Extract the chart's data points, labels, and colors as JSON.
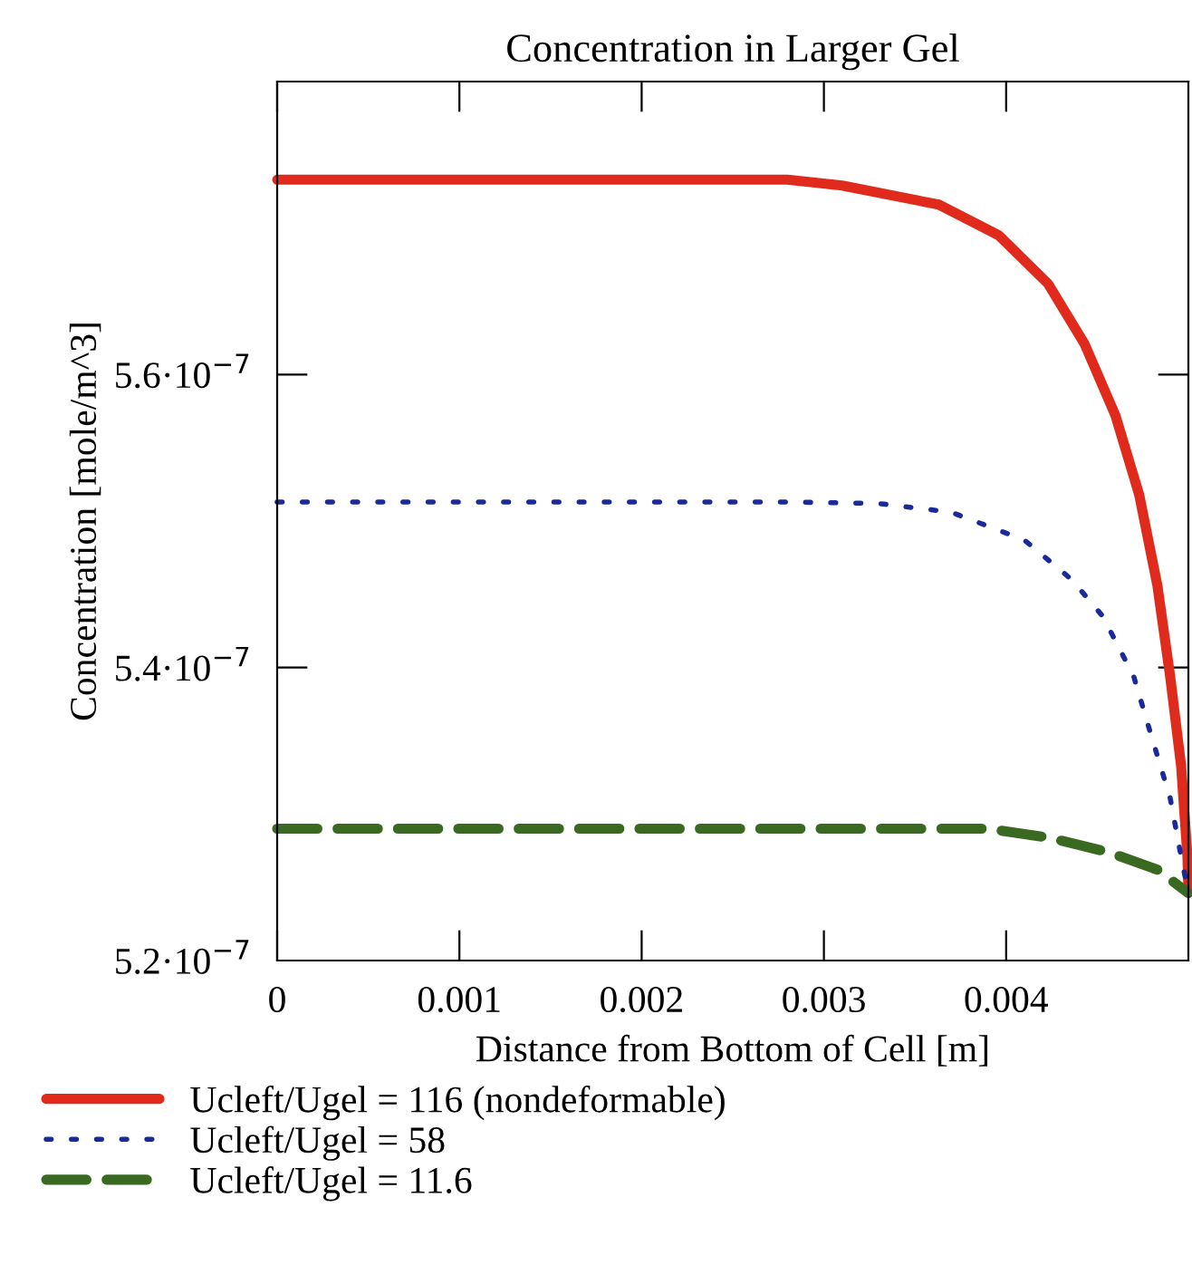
{
  "chart_data": {
    "type": "line",
    "title": "Concentration in Larger Gel",
    "xlabel": "Distance from Bottom of Cell [m]",
    "ylabel": "Concentration [mole/m^3]",
    "xlim": [
      0,
      0.005
    ],
    "ylim": [
      5.2e-07,
      5.8e-07
    ],
    "xticks": [
      0,
      0.001,
      0.002,
      0.003,
      0.004
    ],
    "yticks": [
      {
        "value": 5.2e-07,
        "label": "5.2·10$^{−7}$"
      },
      {
        "value": 5.4e-07,
        "label": "5.4·10$^{−7}$"
      },
      {
        "value": 5.6e-07,
        "label": "5.6·10$^{−7}$"
      }
    ],
    "grid": false,
    "legend": "bottom left",
    "marker": "none",
    "series": [
      {
        "name": "Ucleft/Ugel = 116 (nondeformable)",
        "color": "#e02a1c",
        "line_style": "solid",
        "x": [
          0,
          0.001,
          0.002,
          0.0028,
          0.0031,
          0.00363,
          0.00396,
          0.00423,
          0.00443,
          0.0046,
          0.00473,
          0.00483,
          0.0049,
          0.00496,
          0.004995,
          0.005
        ],
        "values": [
          5.733e-07,
          5.733e-07,
          5.733e-07,
          5.733e-07,
          5.729e-07,
          5.716e-07,
          5.695e-07,
          5.662e-07,
          5.621e-07,
          5.572e-07,
          5.518e-07,
          5.456e-07,
          5.394e-07,
          5.333e-07,
          5.271e-07,
          5.25e-07
        ]
      },
      {
        "name": "Ucleft/Ugel = 58",
        "color": "#1a2a9a",
        "line_style": "dotted",
        "x": [
          0,
          0.001,
          0.002,
          0.0028,
          0.0033,
          0.0037,
          0.0041,
          0.00436,
          0.00453,
          0.0047,
          0.0048,
          0.0049,
          0.00496,
          0.005
        ],
        "values": [
          5.513e-07,
          5.513e-07,
          5.513e-07,
          5.513e-07,
          5.512e-07,
          5.506e-07,
          5.487e-07,
          5.46e-07,
          5.435e-07,
          5.394e-07,
          5.352e-07,
          5.311e-07,
          5.271e-07,
          5.246e-07
        ]
      },
      {
        "name": "Ucleft/Ugel = 11.6",
        "color": "#3a6a22",
        "line_style": "dashed",
        "x": [
          0,
          0.001,
          0.002,
          0.003,
          0.0036,
          0.0039,
          0.00423,
          0.00456,
          0.00483,
          0.005
        ],
        "values": [
          5.29e-07,
          5.29e-07,
          5.29e-07,
          5.29e-07,
          5.29e-07,
          5.29e-07,
          5.284e-07,
          5.274e-07,
          5.262e-07,
          5.246e-07
        ]
      }
    ]
  }
}
